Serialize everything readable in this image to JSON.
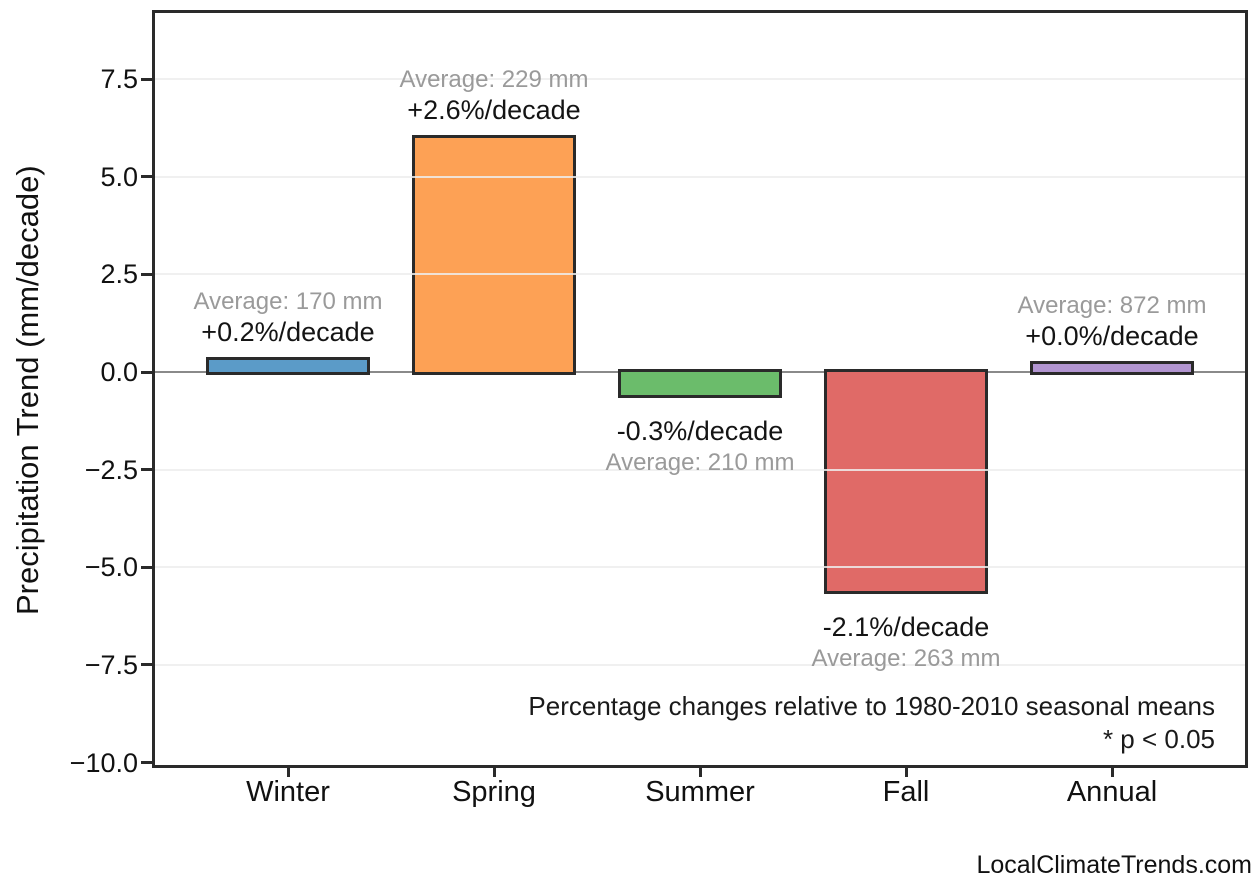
{
  "chart_data": {
    "type": "bar",
    "title": "",
    "xlabel": "",
    "ylabel": "Precipitation Trend (mm/decade)",
    "categories": [
      "Winter",
      "Spring",
      "Summer",
      "Fall",
      "Annual"
    ],
    "values": [
      0.3,
      6.0,
      -0.6,
      -5.6,
      0.2
    ],
    "bar_colors": [
      "#5b9bc8",
      "#fda155",
      "#6bbc6b",
      "#e06a67",
      "#b295d1"
    ],
    "bar_edge_color": "#2a2a2a",
    "annotations": [
      {
        "average": "Average: 170 mm",
        "percent": "+0.2%/decade"
      },
      {
        "average": "Average: 229 mm",
        "percent": "+2.6%/decade"
      },
      {
        "average": "Average: 210 mm",
        "percent": "-0.3%/decade"
      },
      {
        "average": "Average: 263 mm",
        "percent": "-2.1%/decade"
      },
      {
        "average": "Average: 872 mm",
        "percent": "+0.0%/decade"
      }
    ],
    "y_ticks": [
      7.5,
      5.0,
      2.5,
      0.0,
      -2.5,
      -5.0,
      -7.5,
      -10.0
    ],
    "y_tick_labels": [
      "7.5",
      "5.0",
      "2.5",
      "0.0",
      "−2.5",
      "−5.0",
      "−7.5",
      "−10.0"
    ],
    "ylim": [
      -10.06,
      9.19
    ],
    "grid": true,
    "legend_position": "none",
    "note": {
      "line1": "Percentage changes relative to 1980-2010 seasonal means",
      "line2": "* p < 0.05"
    },
    "colors": {
      "grid": "rgba(237,237,237,0.85)",
      "zero_line": "#8a8a8a",
      "spine": "#2a2a2a",
      "average_text": "#9a9a9a",
      "percent_text": "#141414"
    }
  },
  "watermark": "LocalClimateTrends.com"
}
